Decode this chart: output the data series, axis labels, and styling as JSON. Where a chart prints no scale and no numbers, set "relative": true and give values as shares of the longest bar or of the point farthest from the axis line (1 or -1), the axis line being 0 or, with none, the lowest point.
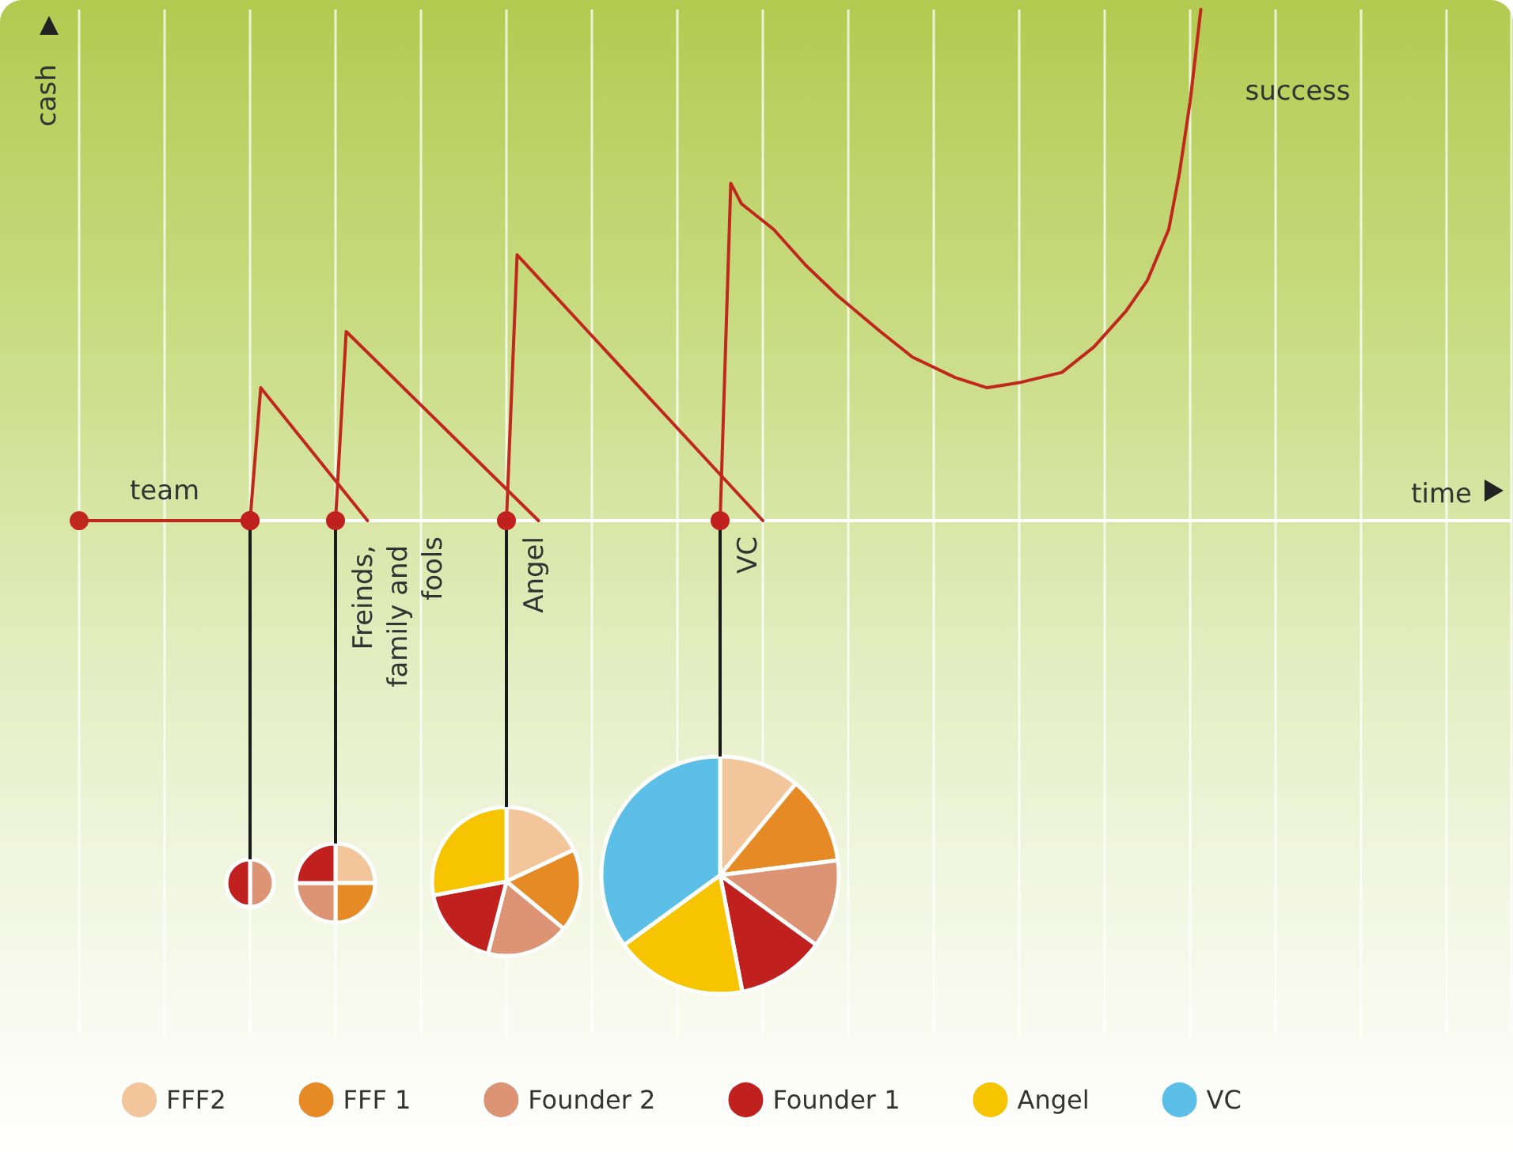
{
  "chart_data": [
    {
      "type": "line",
      "relative": true,
      "xlabel": "time",
      "ylabel": "cash",
      "categories": [
        null,
        null,
        null,
        null,
        null,
        null,
        null,
        null,
        null,
        null,
        null,
        null,
        null,
        null,
        null,
        null,
        null,
        null,
        null,
        null,
        null,
        null,
        null,
        null,
        null,
        null,
        null,
        null,
        null,
        null,
        null,
        null,
        null,
        null,
        null,
        null,
        null,
        null,
        null,
        null,
        null,
        null,
        null,
        null,
        null,
        null,
        null,
        null,
        null,
        null,
        null,
        null,
        null,
        null,
        null,
        null,
        null,
        null,
        null,
        null,
        null,
        null,
        null,
        null,
        null,
        null,
        null,
        null,
        null,
        null,
        null,
        null,
        null,
        null,
        null,
        null,
        null,
        null,
        null,
        null,
        null,
        null,
        null,
        null,
        null,
        null,
        null,
        null,
        null,
        null,
        null,
        null,
        null,
        null,
        null,
        null,
        null,
        null,
        null,
        null,
        null,
        null,
        null,
        null,
        null,
        null,
        null,
        null,
        null,
        null,
        null,
        null,
        null,
        null,
        null,
        null,
        null,
        null,
        null,
        null,
        null,
        null,
        null,
        null,
        null,
        null,
        null,
        null,
        null,
        null,
        null,
        null,
        null,
        null,
        null
      ],
      "tick_labels": false,
      "grid": "x",
      "legend": false,
      "marker": "none",
      "line_style": "solid",
      "series": [
        {
          "color": "#c0281e",
          "marker": "circle",
          "values": [
            0,
            null,
            null,
            null,
            null,
            null,
            null,
            null,
            null,
            null,
            null,
            null,
            null,
            null,
            null,
            null,
            0,
            null,
            null,
            null,
            null,
            null,
            null,
            null,
            null,
            null,
            null,
            null,
            null,
            null,
            null,
            null,
            null,
            null,
            null,
            null,
            null,
            null,
            null,
            null,
            null,
            null,
            null,
            null,
            null,
            null,
            null,
            null,
            null,
            null,
            null,
            null,
            null,
            null,
            null,
            null,
            null,
            null,
            null,
            null,
            null,
            null,
            null,
            null,
            null,
            null,
            null,
            null,
            null,
            null,
            null,
            null,
            null,
            null,
            null,
            null,
            null,
            null,
            null,
            null,
            null,
            null,
            null,
            null,
            null,
            null,
            null,
            null,
            null,
            null,
            null,
            null,
            null,
            null,
            null,
            null,
            null,
            null,
            null,
            null,
            null,
            null,
            null,
            null,
            null,
            null,
            null,
            null,
            null,
            null,
            null,
            null,
            null,
            null,
            null,
            null,
            null,
            null,
            null,
            null,
            null,
            null,
            null,
            null,
            null,
            null,
            null,
            null,
            null,
            null,
            null,
            null,
            null,
            null,
            null
          ]
        },
        {
          "color": "#c0281e",
          "values": [
            null,
            null,
            null,
            null,
            null,
            null,
            null,
            null,
            null,
            null,
            null,
            null,
            null,
            null,
            null,
            null,
            0,
            0.26,
            null,
            null,
            null,
            null,
            null,
            null,
            null,
            null,
            null,
            0,
            null,
            null,
            null,
            null,
            null,
            null,
            null,
            null,
            null,
            null,
            null,
            null,
            null,
            null,
            null,
            null,
            null,
            null,
            null,
            null,
            null,
            null,
            null,
            null,
            null,
            null,
            null,
            null,
            null,
            null,
            null,
            null,
            null,
            null,
            null,
            null,
            null,
            null,
            null,
            null,
            null,
            null,
            null,
            null,
            null,
            null,
            null,
            null,
            null,
            null,
            null,
            null,
            null,
            null,
            null,
            null,
            null,
            null,
            null,
            null,
            null,
            null,
            null,
            null,
            null,
            null,
            null,
            null,
            null,
            null,
            null,
            null,
            null,
            null,
            null,
            null,
            null,
            null,
            null,
            null,
            null,
            null,
            null,
            null,
            null,
            null,
            null,
            null,
            null,
            null,
            null,
            null,
            null,
            null,
            null,
            null,
            null,
            null,
            null,
            null,
            null,
            null,
            null,
            null,
            null,
            null,
            null
          ]
        },
        {
          "color": "#c0281e",
          "values": [
            null,
            null,
            null,
            null,
            null,
            null,
            null,
            null,
            null,
            null,
            null,
            null,
            null,
            null,
            null,
            null,
            null,
            null,
            null,
            null,
            null,
            null,
            null,
            null,
            0,
            0.37,
            null,
            null,
            null,
            null,
            null,
            null,
            null,
            null,
            null,
            null,
            null,
            null,
            null,
            null,
            null,
            null,
            null,
            0,
            null,
            null,
            null,
            null,
            null,
            null,
            null,
            null,
            null,
            null,
            null,
            null,
            null,
            null,
            null,
            null,
            null,
            null,
            null,
            null,
            null,
            null,
            null,
            null,
            null,
            null,
            null,
            null,
            null,
            null,
            null,
            null,
            null,
            null,
            null,
            null,
            null,
            null,
            null,
            null,
            null,
            null,
            null,
            null,
            null,
            null,
            null,
            null,
            null,
            null,
            null,
            null,
            null,
            null,
            null,
            null,
            null,
            null,
            null,
            null,
            null,
            null,
            null,
            null,
            null,
            null,
            null,
            null,
            null,
            null,
            null,
            null,
            null,
            null,
            null,
            null,
            null,
            null,
            null,
            null,
            null,
            null,
            null,
            null,
            null,
            null,
            null,
            null,
            null,
            null,
            null
          ]
        },
        {
          "color": "#c0281e",
          "values": [
            null,
            null,
            null,
            null,
            null,
            null,
            null,
            null,
            null,
            null,
            null,
            null,
            null,
            null,
            null,
            null,
            null,
            null,
            null,
            null,
            null,
            null,
            null,
            null,
            null,
            null,
            null,
            null,
            null,
            null,
            null,
            null,
            null,
            null,
            null,
            null,
            null,
            null,
            null,
            null,
            0,
            0.52,
            null,
            null,
            null,
            null,
            null,
            null,
            null,
            null,
            null,
            null,
            null,
            null,
            null,
            null,
            null,
            null,
            null,
            null,
            null,
            null,
            null,
            null,
            0,
            null,
            null,
            null,
            null,
            null,
            null,
            null,
            null,
            null,
            null,
            null,
            null,
            null,
            null,
            null,
            null,
            null,
            null,
            null,
            null,
            null,
            null,
            null,
            null,
            null,
            null,
            null,
            null,
            null,
            null,
            null,
            null,
            null,
            null,
            null,
            null,
            null,
            null,
            null,
            null,
            null,
            null,
            null,
            null,
            null,
            null,
            null,
            null,
            null,
            null,
            null,
            null,
            null,
            null,
            null,
            null,
            null,
            null,
            null,
            null,
            null,
            null,
            null,
            null,
            null,
            null,
            null,
            null,
            null,
            null
          ]
        },
        {
          "color": "#c0281e",
          "values": [
            null,
            null,
            null,
            null,
            null,
            null,
            null,
            null,
            null,
            null,
            null,
            null,
            null,
            null,
            null,
            null,
            null,
            null,
            null,
            null,
            null,
            null,
            null,
            null,
            null,
            null,
            null,
            null,
            null,
            null,
            null,
            null,
            null,
            null,
            null,
            null,
            null,
            null,
            null,
            null,
            null,
            null,
            null,
            null,
            null,
            null,
            null,
            null,
            null,
            null,
            null,
            null,
            null,
            null,
            null,
            null,
            null,
            null,
            null,
            null,
            0,
            0.66,
            0.62,
            null,
            null,
            0.57,
            null,
            null,
            0.5,
            null,
            null,
            0.44,
            null,
            null,
            null,
            0.37,
            null,
            null,
            0.32,
            null,
            null,
            null,
            0.28,
            null,
            null,
            0.26,
            null,
            null,
            0.27,
            null,
            null,
            null,
            0.29,
            null,
            null,
            0.34,
            null,
            null,
            0.41,
            null,
            0.47,
            null,
            0.57,
            0.68,
            0.82,
            1.0,
            null,
            null,
            null,
            null,
            null,
            null,
            null,
            null,
            null,
            null,
            null,
            null,
            null,
            null,
            null,
            null,
            null,
            null,
            null,
            null,
            null,
            null,
            null,
            null,
            null,
            null,
            null,
            null,
            null
          ]
        }
      ],
      "annotations": [
        "team",
        "Freinds, family and fools",
        "Angel",
        "VC",
        "success"
      ]
    },
    {
      "type": "pie",
      "legend": "bottom",
      "categories": [
        "FFF2",
        "FFF 1",
        "Founder 2",
        "Founder 1",
        "Angel",
        "VC"
      ],
      "colors": [
        "#f2c59a",
        "#e58a24",
        "#dc9474",
        "#c0201e",
        "#f6c400",
        "#5bbfe8"
      ],
      "series": [
        {
          "values": [
            null,
            null,
            50,
            50,
            null,
            null
          ]
        },
        {
          "values": [
            25,
            25,
            25,
            25,
            null,
            null
          ]
        },
        {
          "values": [
            18,
            18,
            18,
            18,
            28,
            null
          ]
        },
        {
          "values": [
            11,
            12,
            12,
            12,
            18,
            35
          ]
        }
      ]
    }
  ]
}
